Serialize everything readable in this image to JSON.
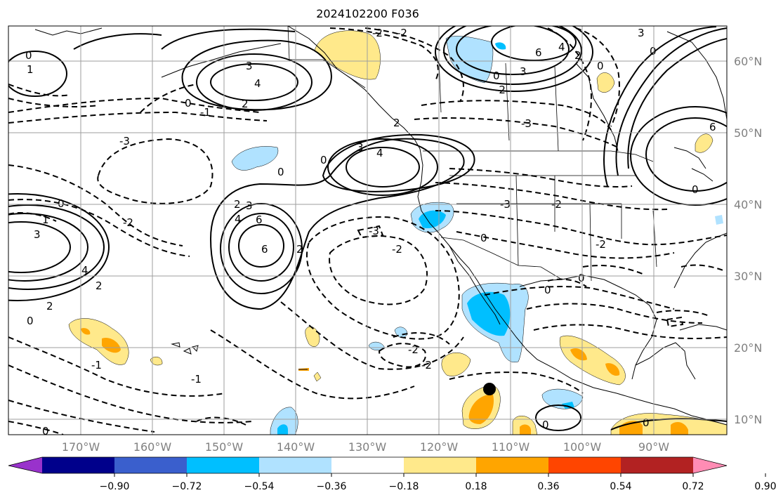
{
  "title": "2024102200 F036",
  "lat_labels": [
    "60°N",
    "50°N",
    "40°N",
    "30°N",
    "20°N",
    "10°N"
  ],
  "lon_labels": [
    "170°W",
    "160°W",
    "150°W",
    "140°W",
    "130°W",
    "120°W",
    "110°W",
    "100°W",
    "90°W"
  ],
  "colorbar": {
    "ticks": [
      "−0.90",
      "−0.72",
      "−0.54",
      "−0.36",
      "−0.18",
      "0.18",
      "0.36",
      "0.54",
      "0.72",
      "0.90"
    ],
    "colors": [
      "#9932cc",
      "#00008b",
      "#3a5fcd",
      "#00bfff",
      "#b0e2ff",
      "#ffffff",
      "#ffe98b",
      "#ffa500",
      "#ff4500",
      "#b22222",
      "#ff8cb4"
    ]
  },
  "contour_labels": [
    "0",
    "1",
    "2",
    "3",
    "4",
    "6",
    "-1",
    "-2",
    "-3"
  ]
}
